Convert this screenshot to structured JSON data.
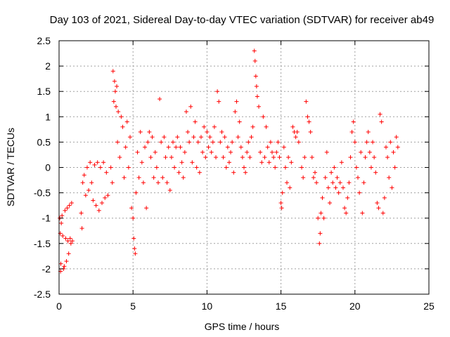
{
  "chart_data": {
    "type": "scatter",
    "title": "Day 103 of 2021, Sidereal Day-to-day VTEC variation (SDTVAR) for receiver ab49",
    "xlabel": "GPS time / hours",
    "ylabel": "SDTVAR / TECUs",
    "xlim": [
      0,
      25
    ],
    "ylim": [
      -2.5,
      2.5
    ],
    "x_ticks": [
      0,
      5,
      10,
      15,
      20,
      25
    ],
    "x_tick_labels": [
      "0",
      "5",
      "10",
      "15",
      "20",
      "25"
    ],
    "y_ticks": [
      -2.5,
      -2,
      -1.5,
      -1,
      -0.5,
      0,
      0.5,
      1,
      1.5,
      2,
      2.5
    ],
    "y_tick_labels": [
      "-2.5",
      "-2",
      "-1.5",
      "-1",
      "-0.5",
      "0",
      "0.5",
      "1",
      "1.5",
      "2",
      "2.5"
    ],
    "grid": true,
    "marker": "+",
    "series": [
      {
        "name": "SDTVAR",
        "color": "#ff0000",
        "points": [
          [
            0.05,
            -1.0
          ],
          [
            0.08,
            -1.3
          ],
          [
            0.1,
            -2.05
          ],
          [
            0.12,
            -1.9
          ],
          [
            0.15,
            -1.1
          ],
          [
            0.2,
            -0.95
          ],
          [
            0.25,
            -1.35
          ],
          [
            0.3,
            -2.0
          ],
          [
            0.35,
            -1.95
          ],
          [
            0.4,
            -0.85
          ],
          [
            0.45,
            -1.4
          ],
          [
            0.5,
            -1.85
          ],
          [
            0.55,
            -0.8
          ],
          [
            0.6,
            -1.45
          ],
          [
            0.65,
            -1.7
          ],
          [
            0.7,
            -0.75
          ],
          [
            0.75,
            -1.4
          ],
          [
            0.8,
            -1.5
          ],
          [
            0.85,
            -0.7
          ],
          [
            0.9,
            -1.45
          ],
          [
            1.5,
            -0.9
          ],
          [
            1.55,
            -1.2
          ],
          [
            1.6,
            -0.3
          ],
          [
            1.7,
            -0.15
          ],
          [
            1.8,
            -0.55
          ],
          [
            1.9,
            0.0
          ],
          [
            2.0,
            -0.45
          ],
          [
            2.1,
            0.1
          ],
          [
            2.2,
            -0.3
          ],
          [
            2.3,
            -0.65
          ],
          [
            2.4,
            0.05
          ],
          [
            2.5,
            -0.75
          ],
          [
            2.6,
            0.1
          ],
          [
            2.7,
            -0.85
          ],
          [
            2.8,
            0.0
          ],
          [
            2.9,
            -0.7
          ],
          [
            3.0,
            0.1
          ],
          [
            3.1,
            -0.6
          ],
          [
            3.2,
            -0.1
          ],
          [
            3.3,
            -0.55
          ],
          [
            3.5,
            0.0
          ],
          [
            3.6,
            -0.3
          ],
          [
            3.65,
            1.9
          ],
          [
            3.7,
            1.3
          ],
          [
            3.75,
            1.7
          ],
          [
            3.8,
            1.5
          ],
          [
            3.85,
            1.2
          ],
          [
            3.9,
            1.6
          ],
          [
            3.95,
            0.5
          ],
          [
            4.0,
            1.1
          ],
          [
            4.1,
            0.2
          ],
          [
            4.2,
            1.0
          ],
          [
            4.3,
            0.8
          ],
          [
            4.4,
            -0.2
          ],
          [
            4.5,
            0.4
          ],
          [
            4.6,
            0.9
          ],
          [
            4.7,
            0.0
          ],
          [
            4.8,
            0.6
          ],
          [
            4.9,
            -0.8
          ],
          [
            5.0,
            -1.0
          ],
          [
            5.05,
            -1.4
          ],
          [
            5.1,
            -1.6
          ],
          [
            5.15,
            -1.7
          ],
          [
            5.2,
            -0.5
          ],
          [
            5.3,
            0.3
          ],
          [
            5.4,
            -0.2
          ],
          [
            5.5,
            0.7
          ],
          [
            5.6,
            0.1
          ],
          [
            5.7,
            -0.3
          ],
          [
            5.8,
            0.4
          ],
          [
            5.9,
            -0.8
          ],
          [
            6.0,
            0.5
          ],
          [
            6.1,
            0.7
          ],
          [
            6.2,
            0.2
          ],
          [
            6.3,
            0.6
          ],
          [
            6.4,
            -0.2
          ],
          [
            6.5,
            0.3
          ],
          [
            6.6,
            0.0
          ],
          [
            6.7,
            -0.3
          ],
          [
            6.8,
            1.35
          ],
          [
            6.9,
            0.5
          ],
          [
            7.0,
            -0.2
          ],
          [
            7.1,
            0.6
          ],
          [
            7.2,
            0.2
          ],
          [
            7.3,
            -0.3
          ],
          [
            7.4,
            0.4
          ],
          [
            7.5,
            -0.45
          ],
          [
            7.6,
            0.2
          ],
          [
            7.7,
            0.5
          ],
          [
            7.8,
            0.0
          ],
          [
            7.9,
            0.4
          ],
          [
            8.0,
            0.6
          ],
          [
            8.1,
            -0.1
          ],
          [
            8.2,
            0.4
          ],
          [
            8.3,
            0.1
          ],
          [
            8.4,
            -0.2
          ],
          [
            8.5,
            0.3
          ],
          [
            8.6,
            1.1
          ],
          [
            8.7,
            0.7
          ],
          [
            8.8,
            0.5
          ],
          [
            8.9,
            1.2
          ],
          [
            9.0,
            0.1
          ],
          [
            9.1,
            0.6
          ],
          [
            9.2,
            0.9
          ],
          [
            9.3,
            0.0
          ],
          [
            9.4,
            0.5
          ],
          [
            9.5,
            -0.1
          ],
          [
            9.6,
            0.6
          ],
          [
            9.7,
            0.3
          ],
          [
            9.8,
            0.8
          ],
          [
            9.9,
            0.2
          ],
          [
            10.0,
            0.7
          ],
          [
            10.1,
            0.4
          ],
          [
            10.2,
            0.6
          ],
          [
            10.3,
            0.3
          ],
          [
            10.4,
            0.5
          ],
          [
            10.5,
            0.8
          ],
          [
            10.6,
            0.2
          ],
          [
            10.7,
            1.5
          ],
          [
            10.8,
            1.3
          ],
          [
            10.9,
            0.5
          ],
          [
            11.0,
            0.7
          ],
          [
            11.1,
            0.2
          ],
          [
            11.2,
            0.6
          ],
          [
            11.3,
            0.0
          ],
          [
            11.4,
            0.4
          ],
          [
            11.5,
            0.1
          ],
          [
            11.6,
            0.3
          ],
          [
            11.7,
            0.5
          ],
          [
            11.8,
            -0.1
          ],
          [
            11.9,
            1.1
          ],
          [
            12.0,
            1.3
          ],
          [
            12.1,
            0.6
          ],
          [
            12.2,
            0.9
          ],
          [
            12.3,
            0.4
          ],
          [
            12.4,
            0.2
          ],
          [
            12.5,
            0.0
          ],
          [
            12.6,
            -0.1
          ],
          [
            12.7,
            0.3
          ],
          [
            12.8,
            0.5
          ],
          [
            12.9,
            0.2
          ],
          [
            13.0,
            0.6
          ],
          [
            13.1,
            0.8
          ],
          [
            13.2,
            2.3
          ],
          [
            13.25,
            2.1
          ],
          [
            13.3,
            1.8
          ],
          [
            13.35,
            1.6
          ],
          [
            13.4,
            1.4
          ],
          [
            13.5,
            1.2
          ],
          [
            13.6,
            0.3
          ],
          [
            13.7,
            0.1
          ],
          [
            13.8,
            1.0
          ],
          [
            13.9,
            0.2
          ],
          [
            14.0,
            0.8
          ],
          [
            14.1,
            0.4
          ],
          [
            14.2,
            0.1
          ],
          [
            14.3,
            0.5
          ],
          [
            14.4,
            0.3
          ],
          [
            14.5,
            0.2
          ],
          [
            14.6,
            0.0
          ],
          [
            14.7,
            0.3
          ],
          [
            14.8,
            0.5
          ],
          [
            14.9,
            0.2
          ],
          [
            15.0,
            -0.7
          ],
          [
            15.05,
            -0.8
          ],
          [
            15.1,
            -0.5
          ],
          [
            15.2,
            0.4
          ],
          [
            15.3,
            0.0
          ],
          [
            15.4,
            -0.3
          ],
          [
            15.5,
            0.2
          ],
          [
            15.6,
            -0.4
          ],
          [
            15.7,
            0.1
          ],
          [
            15.8,
            0.8
          ],
          [
            15.9,
            0.7
          ],
          [
            16.0,
            0.6
          ],
          [
            16.1,
            0.7
          ],
          [
            16.2,
            0.5
          ],
          [
            16.4,
            0.0
          ],
          [
            16.5,
            -0.2
          ],
          [
            16.6,
            0.2
          ],
          [
            16.7,
            1.3
          ],
          [
            16.8,
            1.0
          ],
          [
            16.9,
            0.9
          ],
          [
            17.0,
            0.7
          ],
          [
            17.1,
            0.2
          ],
          [
            17.2,
            -0.2
          ],
          [
            17.3,
            -0.1
          ],
          [
            17.4,
            -0.3
          ],
          [
            17.5,
            -1.0
          ],
          [
            17.6,
            -1.5
          ],
          [
            17.65,
            -1.3
          ],
          [
            17.7,
            -0.9
          ],
          [
            17.8,
            -0.6
          ],
          [
            17.9,
            -1.0
          ],
          [
            18.0,
            -0.2
          ],
          [
            18.1,
            0.3
          ],
          [
            18.2,
            -0.4
          ],
          [
            18.3,
            -0.7
          ],
          [
            18.4,
            -0.1
          ],
          [
            18.5,
            -0.3
          ],
          [
            18.6,
            0.0
          ],
          [
            18.7,
            -0.4
          ],
          [
            18.8,
            -0.2
          ],
          [
            18.9,
            -0.5
          ],
          [
            19.0,
            -0.3
          ],
          [
            19.1,
            0.1
          ],
          [
            19.2,
            -0.4
          ],
          [
            19.3,
            -0.8
          ],
          [
            19.4,
            -0.9
          ],
          [
            19.5,
            -0.6
          ],
          [
            19.6,
            -0.3
          ],
          [
            19.7,
            0.2
          ],
          [
            19.8,
            0.7
          ],
          [
            19.9,
            0.9
          ],
          [
            20.0,
            0.5
          ],
          [
            20.1,
            0.0
          ],
          [
            20.2,
            -0.2
          ],
          [
            20.3,
            -0.5
          ],
          [
            20.4,
            0.3
          ],
          [
            20.5,
            -0.9
          ],
          [
            20.6,
            -0.3
          ],
          [
            20.7,
            0.2
          ],
          [
            20.8,
            0.5
          ],
          [
            20.9,
            0.7
          ],
          [
            21.0,
            0.3
          ],
          [
            21.1,
            0.0
          ],
          [
            21.2,
            0.5
          ],
          [
            21.3,
            0.2
          ],
          [
            21.4,
            -0.1
          ],
          [
            21.5,
            -0.7
          ],
          [
            21.6,
            -0.8
          ],
          [
            21.7,
            1.05
          ],
          [
            21.8,
            0.9
          ],
          [
            21.9,
            -0.9
          ],
          [
            22.0,
            -0.6
          ],
          [
            22.1,
            0.4
          ],
          [
            22.2,
            0.2
          ],
          [
            22.3,
            -0.2
          ],
          [
            22.4,
            0.5
          ],
          [
            22.5,
            -0.4
          ],
          [
            22.6,
            0.3
          ],
          [
            22.7,
            0.0
          ],
          [
            22.8,
            0.6
          ],
          [
            22.9,
            0.4
          ]
        ]
      }
    ]
  }
}
